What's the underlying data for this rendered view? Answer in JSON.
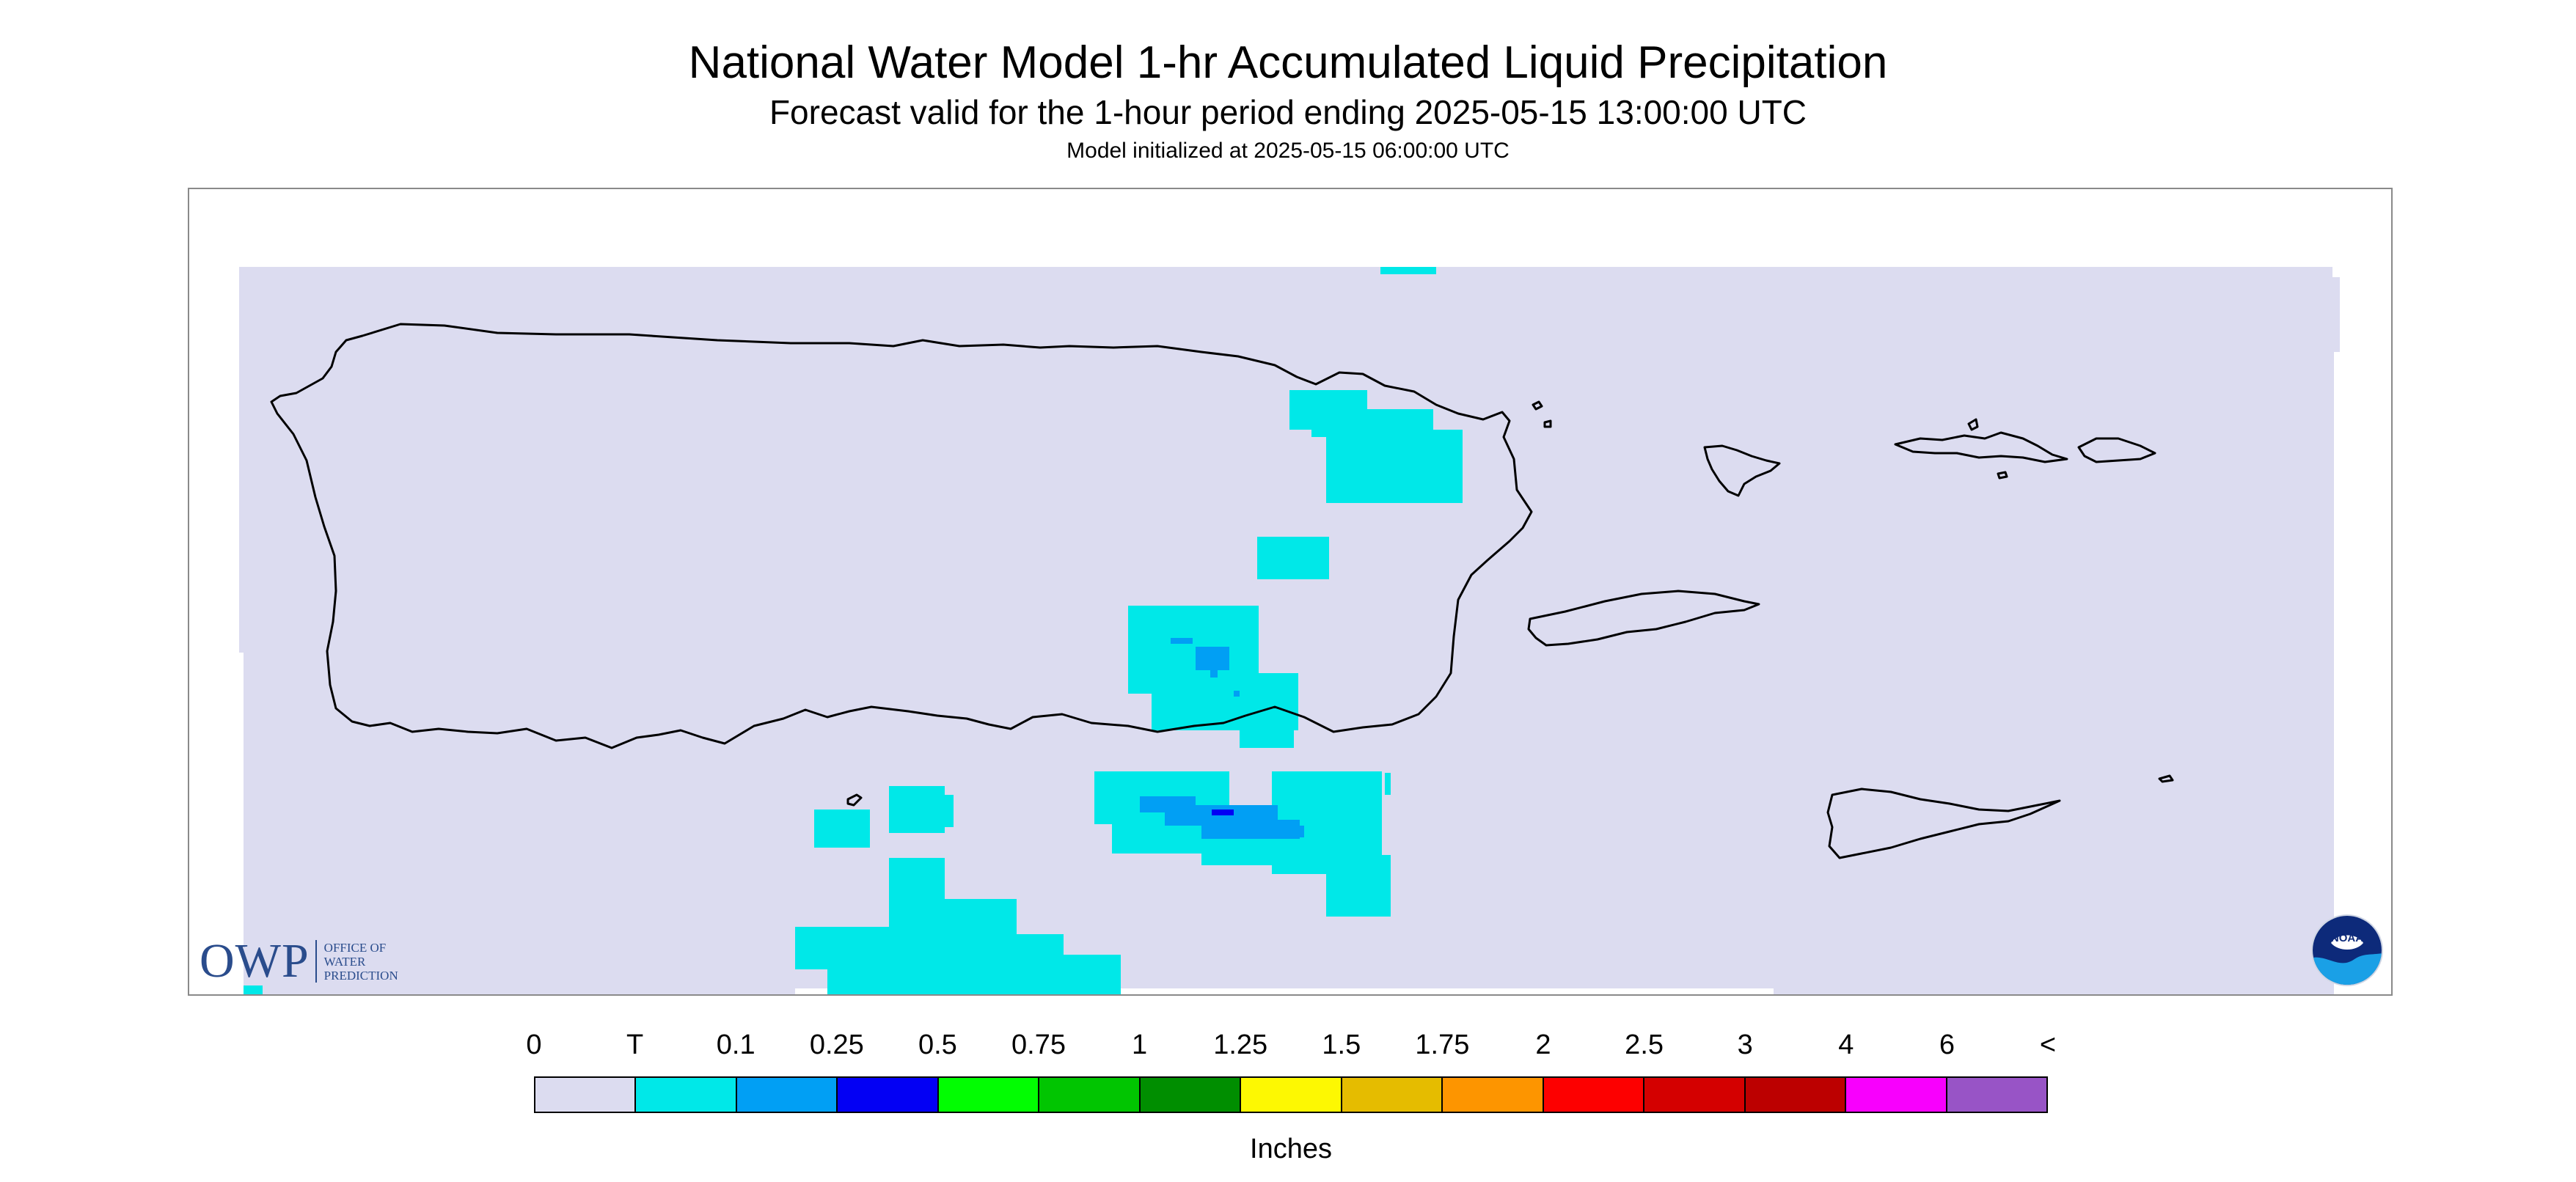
{
  "header": {
    "title": "National Water Model 1-hr Accumulated Liquid Precipitation",
    "subtitle": "Forecast valid for the 1-hour period ending 2025-05-15 13:00:00 UTC",
    "initialized": "Model initialized at 2025-05-15 06:00:00 UTC"
  },
  "logos": {
    "owp": {
      "abbreviation": "OWP",
      "lines": [
        "OFFICE OF",
        "WATER",
        "PREDICTION"
      ]
    },
    "noaa": {
      "text": "NOAA"
    }
  },
  "legend": {
    "labels": [
      "0",
      "T",
      "0.1",
      "0.25",
      "0.5",
      "0.75",
      "1",
      "1.25",
      "1.5",
      "1.75",
      "2",
      "2.5",
      "3",
      "4",
      "6",
      "<"
    ],
    "colors": [
      "#dcdcf0",
      "#00e8e8",
      "#019ff4",
      "#0300f4",
      "#02fd02",
      "#01c501",
      "#008e00",
      "#fdf802",
      "#e5bc00",
      "#fd9500",
      "#fd0000",
      "#d40000",
      "#bc0000",
      "#f800fd",
      "#9854c6"
    ],
    "unit": "Inches"
  },
  "map": {
    "background_color": "#dcdcf0",
    "coastline_color": "#000000",
    "precip_colors": {
      "trace": "#00e8e8",
      "light": "#019ff4",
      "moderate": "#0300f4"
    }
  }
}
